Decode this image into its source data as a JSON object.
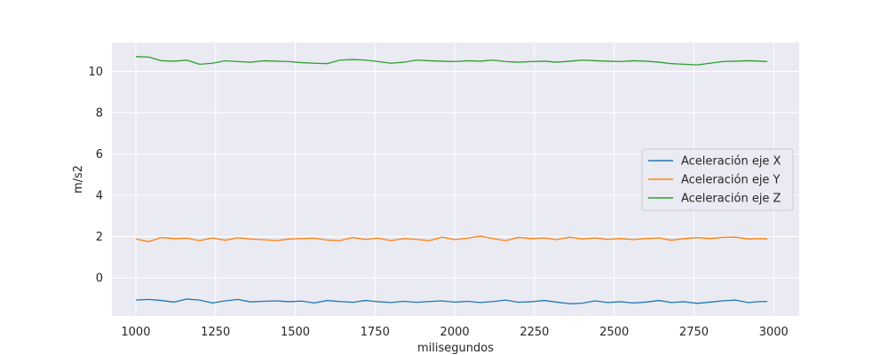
{
  "chart_data": {
    "type": "line",
    "title": "",
    "xlabel": "milisegundos",
    "ylabel": "m/s2",
    "xlim": [
      925,
      3080
    ],
    "ylim": [
      -1.85,
      11.4
    ],
    "xticks": [
      1000,
      1250,
      1500,
      1750,
      2000,
      2250,
      2500,
      2750,
      3000
    ],
    "yticks": [
      0,
      2,
      4,
      6,
      8,
      10
    ],
    "grid": true,
    "legend_position": "center-right",
    "series": [
      {
        "name": "Aceleración eje X",
        "color": "#1f77b4",
        "x": [
          1000,
          1040,
          1080,
          1120,
          1160,
          1200,
          1240,
          1280,
          1320,
          1360,
          1400,
          1440,
          1480,
          1520,
          1560,
          1600,
          1640,
          1680,
          1720,
          1760,
          1800,
          1840,
          1880,
          1920,
          1960,
          2000,
          2040,
          2080,
          2120,
          2160,
          2200,
          2240,
          2280,
          2320,
          2360,
          2400,
          2440,
          2480,
          2520,
          2560,
          2600,
          2640,
          2680,
          2720,
          2760,
          2800,
          2840,
          2880,
          2920,
          2960,
          2980
        ],
        "y": [
          -1.08,
          -1.05,
          -1.1,
          -1.18,
          -1.03,
          -1.08,
          -1.22,
          -1.12,
          -1.05,
          -1.17,
          -1.14,
          -1.12,
          -1.16,
          -1.13,
          -1.22,
          -1.1,
          -1.15,
          -1.19,
          -1.1,
          -1.16,
          -1.2,
          -1.14,
          -1.19,
          -1.15,
          -1.12,
          -1.18,
          -1.14,
          -1.2,
          -1.15,
          -1.08,
          -1.19,
          -1.16,
          -1.1,
          -1.18,
          -1.26,
          -1.23,
          -1.12,
          -1.2,
          -1.16,
          -1.22,
          -1.18,
          -1.1,
          -1.2,
          -1.16,
          -1.24,
          -1.18,
          -1.12,
          -1.08,
          -1.2,
          -1.15,
          -1.15
        ]
      },
      {
        "name": "Aceleración eje Y",
        "color": "#ff7f0e",
        "x": [
          1000,
          1040,
          1080,
          1120,
          1160,
          1200,
          1240,
          1280,
          1320,
          1360,
          1400,
          1440,
          1480,
          1520,
          1560,
          1600,
          1640,
          1680,
          1720,
          1760,
          1800,
          1840,
          1880,
          1920,
          1960,
          2000,
          2040,
          2080,
          2120,
          2160,
          2200,
          2240,
          2280,
          2320,
          2360,
          2400,
          2440,
          2480,
          2520,
          2560,
          2600,
          2640,
          2680,
          2720,
          2760,
          2800,
          2840,
          2880,
          2920,
          2960,
          2980
        ],
        "y": [
          1.88,
          1.75,
          1.95,
          1.9,
          1.92,
          1.8,
          1.93,
          1.82,
          1.94,
          1.88,
          1.85,
          1.8,
          1.88,
          1.9,
          1.92,
          1.83,
          1.8,
          1.95,
          1.86,
          1.92,
          1.8,
          1.9,
          1.86,
          1.8,
          1.97,
          1.85,
          1.92,
          2.02,
          1.9,
          1.8,
          1.96,
          1.9,
          1.93,
          1.85,
          1.97,
          1.88,
          1.93,
          1.86,
          1.9,
          1.85,
          1.9,
          1.93,
          1.82,
          1.9,
          1.95,
          1.9,
          1.96,
          1.97,
          1.88,
          1.9,
          1.88
        ]
      },
      {
        "name": "Aceleración eje Z",
        "color": "#2ca02c",
        "x": [
          1000,
          1040,
          1080,
          1120,
          1160,
          1200,
          1240,
          1280,
          1320,
          1360,
          1400,
          1440,
          1480,
          1520,
          1560,
          1600,
          1640,
          1680,
          1720,
          1760,
          1800,
          1840,
          1880,
          1920,
          1960,
          2000,
          2040,
          2080,
          2120,
          2160,
          2200,
          2240,
          2280,
          2320,
          2360,
          2400,
          2440,
          2480,
          2520,
          2560,
          2600,
          2640,
          2680,
          2720,
          2760,
          2800,
          2840,
          2880,
          2920,
          2960,
          2980
        ],
        "y": [
          10.72,
          10.7,
          10.52,
          10.5,
          10.55,
          10.35,
          10.4,
          10.52,
          10.48,
          10.45,
          10.52,
          10.5,
          10.48,
          10.43,
          10.4,
          10.38,
          10.55,
          10.58,
          10.55,
          10.48,
          10.4,
          10.45,
          10.55,
          10.52,
          10.5,
          10.48,
          10.52,
          10.5,
          10.55,
          10.48,
          10.45,
          10.48,
          10.5,
          10.45,
          10.5,
          10.55,
          10.52,
          10.5,
          10.48,
          10.52,
          10.5,
          10.45,
          10.38,
          10.35,
          10.32,
          10.4,
          10.48,
          10.5,
          10.52,
          10.5,
          10.48
        ]
      }
    ]
  }
}
